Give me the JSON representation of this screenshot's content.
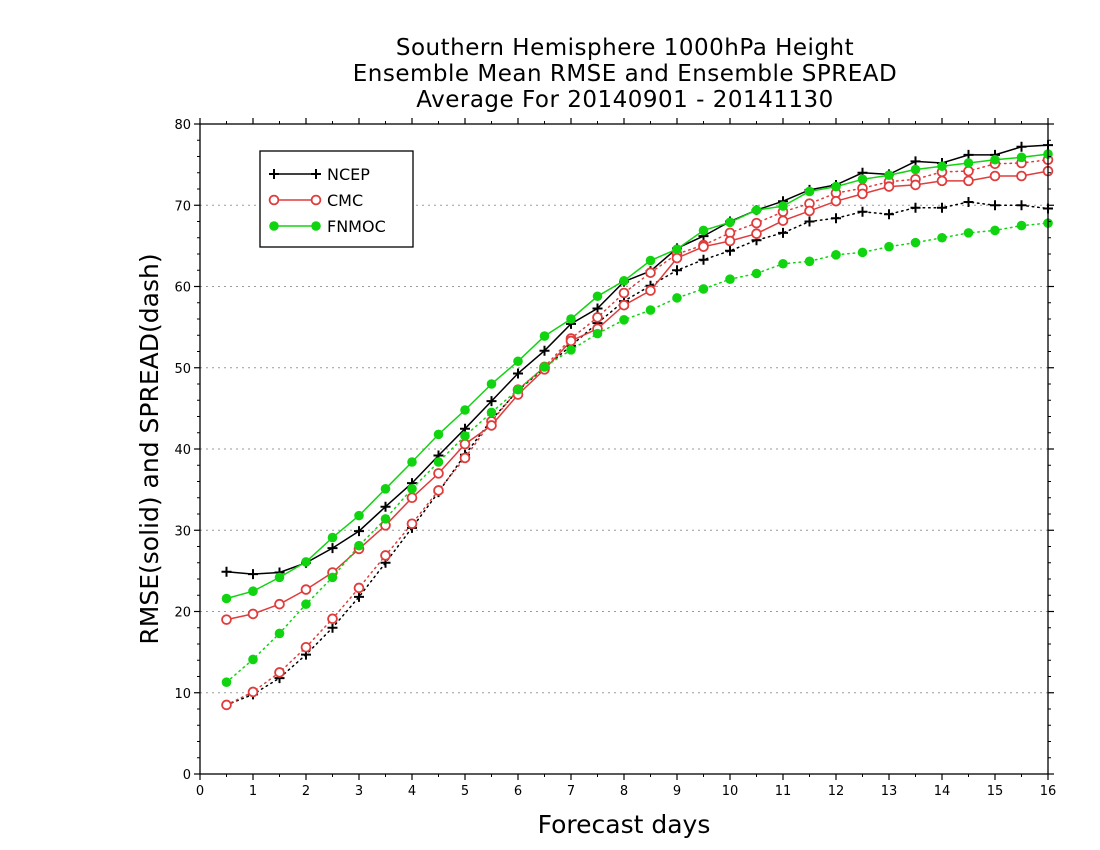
{
  "chart_data": {
    "type": "line",
    "title_lines": [
      "Southern Hemisphere 1000hPa Height",
      "Ensemble Mean RMSE and Ensemble SPREAD",
      "Average For 20140901 - 20141130"
    ],
    "xlabel": "Forecast days",
    "ylabel": "RMSE(solid) and SPREAD(dash)",
    "xlim": [
      0,
      16
    ],
    "ylim": [
      0,
      80
    ],
    "xticks": [
      "0",
      "1",
      "2",
      "3",
      "4",
      "5",
      "6",
      "7",
      "8",
      "9",
      "10",
      "11",
      "12",
      "13",
      "14",
      "15",
      "16"
    ],
    "yticks": [
      "0",
      "10",
      "20",
      "30",
      "40",
      "50",
      "60",
      "70",
      "80"
    ],
    "grid": "horizontal dotted",
    "legend_position": "top-left",
    "x": [
      0.5,
      1,
      1.5,
      2,
      2.5,
      3,
      3.5,
      4,
      4.5,
      5,
      5.5,
      6,
      6.5,
      7,
      7.5,
      8,
      8.5,
      9,
      9.5,
      10,
      10.5,
      11,
      11.5,
      12,
      12.5,
      13,
      13.5,
      14,
      14.5,
      15,
      15.5,
      16
    ],
    "series": [
      {
        "name": "NCEP",
        "color": "#000000",
        "marker": "plus",
        "rmse": [
          24.9,
          24.6,
          24.8,
          26.0,
          27.8,
          29.9,
          32.9,
          35.8,
          39.2,
          42.5,
          45.9,
          49.3,
          52.1,
          55.4,
          57.3,
          60.6,
          61.9,
          64.7,
          66.2,
          68.0,
          69.4,
          70.5,
          71.9,
          72.5,
          74.0,
          73.8,
          75.4,
          75.2,
          76.2,
          76.2,
          77.2,
          77.4
        ],
        "spread": [
          8.5,
          9.8,
          11.8,
          14.7,
          18.0,
          21.8,
          26.0,
          30.3,
          34.7,
          39.3,
          43.6,
          47.2,
          50.0,
          52.7,
          55.5,
          58.2,
          60.1,
          62.0,
          63.3,
          64.4,
          65.7,
          66.6,
          68.0,
          68.4,
          69.2,
          68.9,
          69.7,
          69.7,
          70.4,
          70.0,
          70.0,
          69.6
        ]
      },
      {
        "name": "CMC",
        "color": "#e03c3c",
        "marker": "open-circle",
        "rmse": [
          19.0,
          19.7,
          20.9,
          22.7,
          24.8,
          27.7,
          30.6,
          34.0,
          37.0,
          40.6,
          42.9,
          46.7,
          49.8,
          53.3,
          54.8,
          57.7,
          59.5,
          63.5,
          64.9,
          65.6,
          66.5,
          68.1,
          69.3,
          70.5,
          71.4,
          72.3,
          72.5,
          73.0,
          73.0,
          73.6,
          73.6,
          74.2
        ],
        "spread": [
          8.5,
          10.1,
          12.5,
          15.6,
          19.1,
          22.9,
          26.9,
          30.8,
          34.9,
          38.9,
          43.4,
          47.3,
          50.1,
          53.6,
          56.2,
          59.2,
          61.7,
          64.0,
          65.1,
          66.6,
          67.8,
          69.2,
          70.2,
          71.5,
          72.1,
          72.9,
          73.2,
          74.1,
          74.2,
          75.1,
          75.2,
          75.6
        ]
      },
      {
        "name": "FNMOC",
        "color": "#11d411",
        "marker": "filled-circle",
        "rmse": [
          21.6,
          22.5,
          24.2,
          26.1,
          29.1,
          31.8,
          35.1,
          38.4,
          41.8,
          44.8,
          48.0,
          50.8,
          53.9,
          56.0,
          58.8,
          60.7,
          63.2,
          64.6,
          66.9,
          67.9,
          69.4,
          69.9,
          71.7,
          72.3,
          73.2,
          73.7,
          74.4,
          74.8,
          75.2,
          75.6,
          75.9,
          76.3
        ],
        "spread": [
          11.3,
          14.1,
          17.3,
          20.9,
          24.2,
          28.1,
          31.4,
          35.1,
          38.4,
          41.6,
          44.5,
          47.3,
          50.1,
          52.2,
          54.2,
          55.9,
          57.1,
          58.6,
          59.7,
          60.9,
          61.6,
          62.8,
          63.1,
          63.9,
          64.2,
          64.9,
          65.4,
          66.0,
          66.6,
          66.9,
          67.5,
          67.8
        ]
      }
    ]
  }
}
